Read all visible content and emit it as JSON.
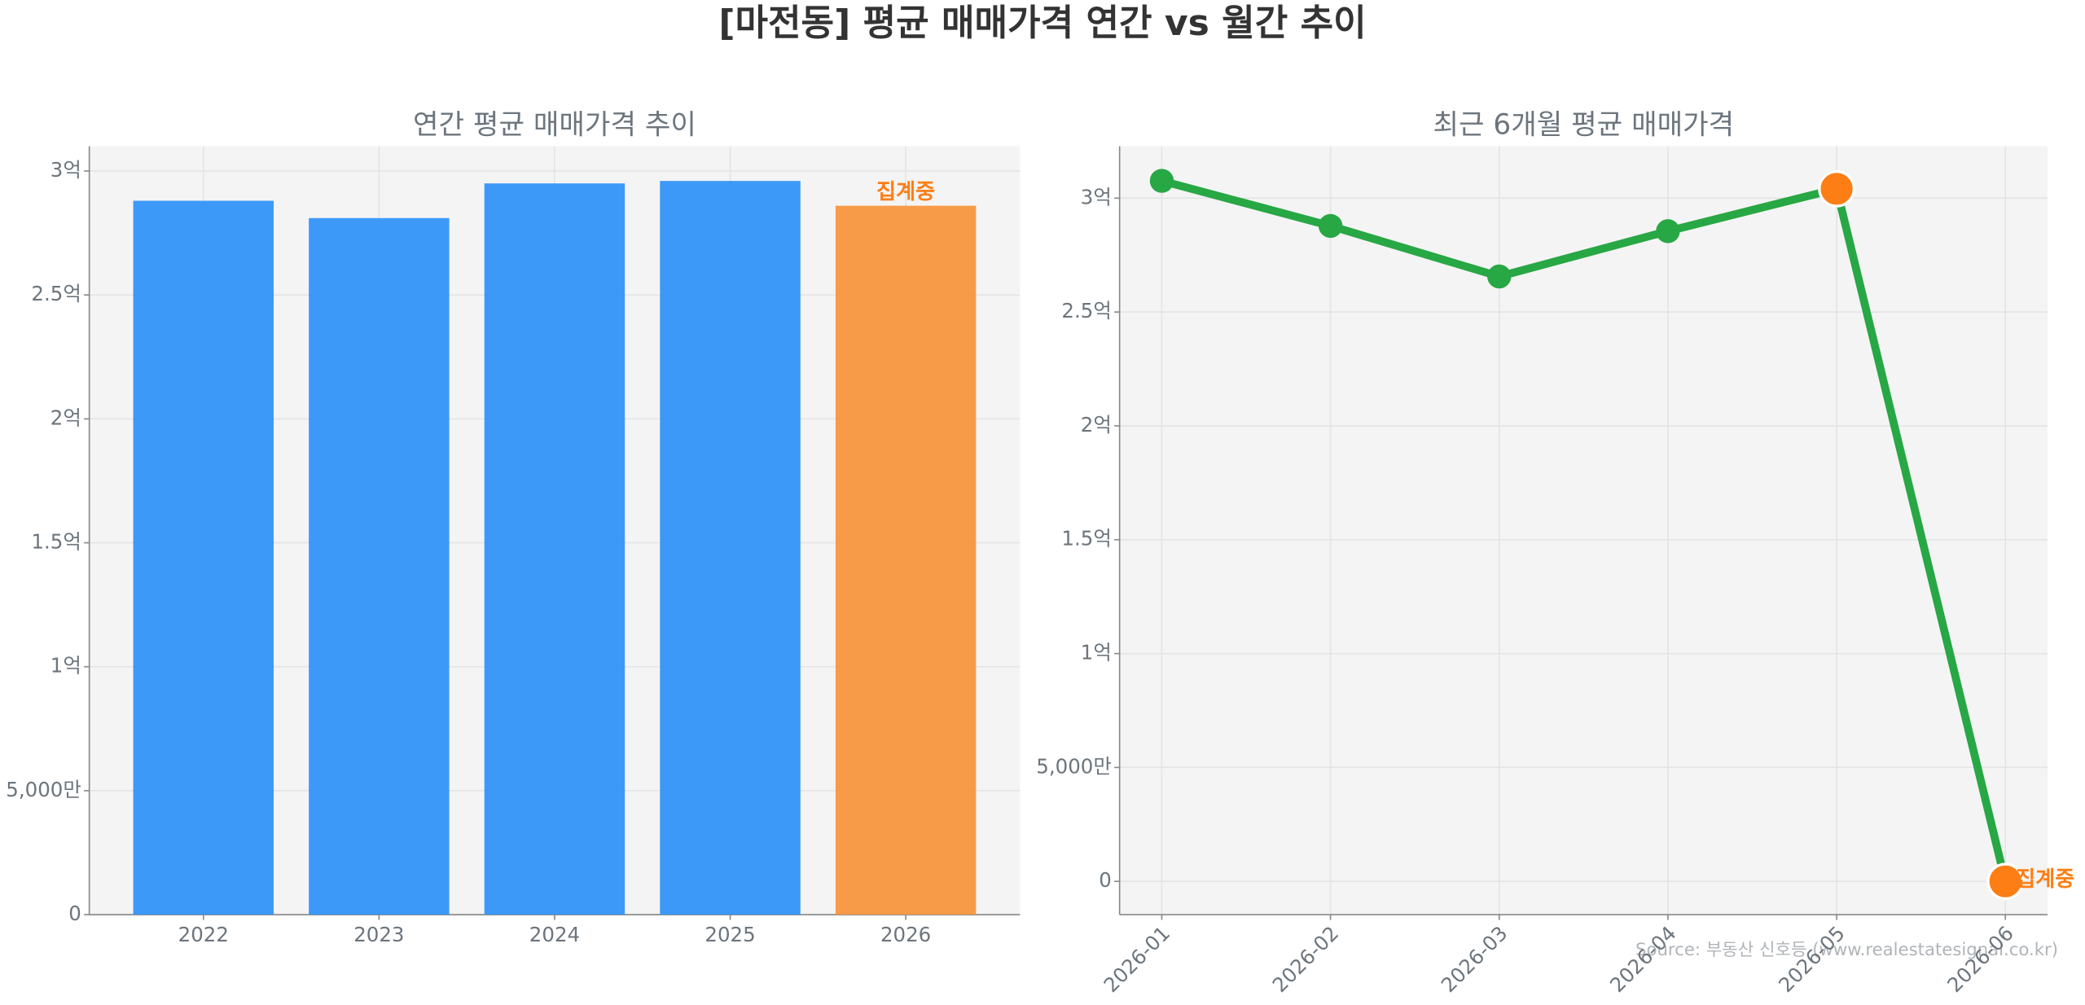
{
  "title": "[마전동] 평균 매매가격 연간 vs 월간 추이",
  "source": "Source: 부동산 신호등 (www.realestatesignal.co.kr)",
  "chart_data": [
    {
      "type": "bar",
      "title": "연간 평균 매매가격 추이",
      "categories": [
        "2022",
        "2023",
        "2024",
        "2025",
        "2026"
      ],
      "values": [
        288000000,
        281000000,
        295000000,
        296000000,
        286000000
      ],
      "colors": [
        "#3393f8",
        "#3393f8",
        "#3393f8",
        "#3393f8",
        "#f7963f"
      ],
      "ylim": [
        0,
        310000000
      ],
      "yticks": [
        {
          "value": 0,
          "label": "0"
        },
        {
          "value": 50000000,
          "label": "5,000만"
        },
        {
          "value": 100000000,
          "label": "1억"
        },
        {
          "value": 150000000,
          "label": "1.5억"
        },
        {
          "value": 200000000,
          "label": "2억"
        },
        {
          "value": 250000000,
          "label": "2.5억"
        },
        {
          "value": 300000000,
          "label": "3억"
        }
      ],
      "grid": true,
      "annotations": [
        {
          "text": "집계중",
          "index": 4,
          "color": "#fd7e14"
        }
      ]
    },
    {
      "type": "line",
      "title": "최근 6개월 평균 매매가격",
      "categories": [
        "2026-01",
        "2026-02",
        "2026-03",
        "2026-04",
        "2026-05",
        "2026-06"
      ],
      "values": [
        307600000,
        287800000,
        265600000,
        285500000,
        304100000,
        0
      ],
      "color": "#28a745",
      "point_colors": [
        "#28a745",
        "#28a745",
        "#28a745",
        "#28a745",
        "#fd7e14",
        "#fd7e14"
      ],
      "ylim": [
        -14600000,
        322800000
      ],
      "yticks": [
        {
          "value": 0,
          "label": "0"
        },
        {
          "value": 50000000,
          "label": "5,000만"
        },
        {
          "value": 100000000,
          "label": "1억"
        },
        {
          "value": 150000000,
          "label": "1.5억"
        },
        {
          "value": 200000000,
          "label": "2억"
        },
        {
          "value": 250000000,
          "label": "2.5억"
        },
        {
          "value": 300000000,
          "label": "3억"
        }
      ],
      "grid": true,
      "annotations": [
        {
          "text": "집계중",
          "index": 5,
          "color": "#fd7e14"
        }
      ]
    }
  ]
}
